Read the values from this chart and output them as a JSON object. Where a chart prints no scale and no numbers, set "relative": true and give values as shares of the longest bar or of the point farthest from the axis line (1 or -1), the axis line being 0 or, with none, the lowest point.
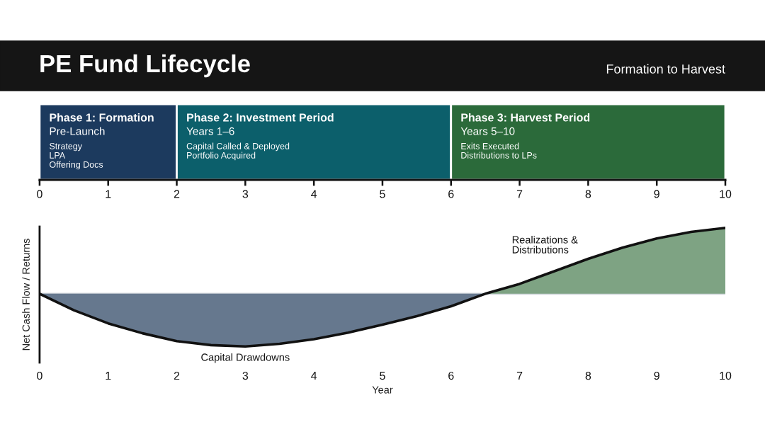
{
  "chart_data": [
    {
      "type": "bar",
      "title": "PE Fund Lifecycle",
      "subtitle": "Formation to Harvest",
      "orientation": "horizontal",
      "stacked": true,
      "categories": [
        null
      ],
      "series": [
        {
          "name": "Phase 1: Formation",
          "color": "#1c3a5e",
          "values": [
            2
          ],
          "value_labels": [
            "Pre-Launch\nStrategy\nLPA\nOffering Docs"
          ]
        },
        {
          "name": "Phase 2: Investment Period",
          "color": "#0c5f6b",
          "values": [
            4
          ],
          "value_labels": [
            "Years 1–6\nCapital Called & Deployed\nPortfolio Acquired"
          ]
        },
        {
          "name": "Phase 3: Harvest Period",
          "color": "#2b6a3a",
          "values": [
            4
          ],
          "value_labels": [
            "Years 5–10\nExits Executed\nDistributions to LPs"
          ]
        }
      ],
      "xlim": [
        0,
        10
      ],
      "xticks": [
        0,
        1,
        2,
        3,
        4,
        5,
        6,
        7,
        8,
        9,
        10
      ]
    },
    {
      "type": "area",
      "relative": true,
      "xlabel": "Year",
      "ylabel": "Net Cash Flow / Returns",
      "xlim": [
        0,
        10
      ],
      "xticks": [
        0,
        1,
        2,
        3,
        4,
        5,
        6,
        7,
        8,
        9,
        10
      ],
      "ref_lines": [
        {
          "axis": "y",
          "value": 0,
          "color": "#cfd5da"
        }
      ],
      "series": [
        {
          "name": "Capital Drawdowns",
          "color": "#66788e",
          "x": [
            0,
            0.5,
            1,
            1.5,
            2,
            2.5,
            3,
            3.5,
            4,
            4.5,
            5,
            5.5,
            6,
            6.5
          ],
          "values": [
            0,
            -0.25,
            -0.45,
            -0.6,
            -0.72,
            -0.78,
            -0.8,
            -0.76,
            -0.69,
            -0.59,
            -0.47,
            -0.34,
            -0.19,
            0
          ]
        },
        {
          "name": "Realizations &\nDistributions",
          "color": "#7ea383",
          "x": [
            6.5,
            7,
            7.5,
            8,
            8.5,
            9,
            9.5,
            10
          ],
          "values": [
            0,
            0.15,
            0.34,
            0.53,
            0.7,
            0.84,
            0.94,
            1
          ]
        },
        {
          "type": "line",
          "color": "#111111",
          "x": [
            0,
            0.5,
            1,
            1.5,
            2,
            2.5,
            3,
            3.5,
            4,
            4.5,
            5,
            5.5,
            6,
            6.5,
            7,
            7.5,
            8,
            8.5,
            9,
            9.5,
            10
          ],
          "values": [
            0,
            -0.25,
            -0.45,
            -0.6,
            -0.72,
            -0.78,
            -0.8,
            -0.76,
            -0.69,
            -0.59,
            -0.47,
            -0.34,
            -0.19,
            0,
            0.15,
            0.34,
            0.53,
            0.7,
            0.84,
            0.94,
            1
          ]
        }
      ]
    }
  ]
}
